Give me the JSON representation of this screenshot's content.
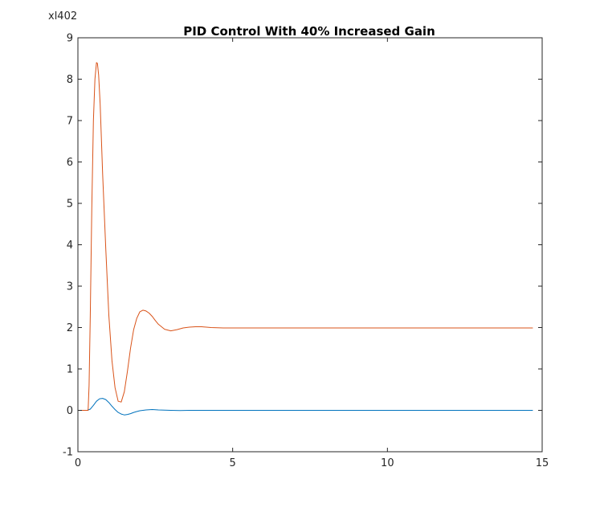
{
  "chart_data": {
    "type": "line",
    "title": "PID Control With 40% Increased Gain",
    "corner_label": "xl402",
    "xlim": [
      0,
      15
    ],
    "ylim": [
      -1,
      9
    ],
    "xticks": [
      0,
      5,
      10,
      15
    ],
    "yticks": [
      -1,
      0,
      1,
      2,
      3,
      4,
      5,
      6,
      7,
      8,
      9
    ],
    "grid": false,
    "legend": "none",
    "series": [
      {
        "color": "#0072BD",
        "x": [
          0,
          0.3,
          0.4,
          0.5,
          0.6,
          0.7,
          0.8,
          0.9,
          1.0,
          1.1,
          1.2,
          1.3,
          1.4,
          1.5,
          1.6,
          1.7,
          1.8,
          1.9,
          2.0,
          2.2,
          2.4,
          2.6,
          2.8,
          3.0,
          3.3,
          3.6,
          4.0,
          5.0,
          6.0,
          8.0,
          10.0,
          12.0,
          14.7
        ],
        "y": [
          0,
          0,
          0.03,
          0.12,
          0.22,
          0.28,
          0.29,
          0.26,
          0.19,
          0.1,
          0.02,
          -0.05,
          -0.09,
          -0.11,
          -0.1,
          -0.08,
          -0.05,
          -0.03,
          -0.01,
          0.01,
          0.02,
          0.01,
          0.005,
          0,
          -0.005,
          0,
          0,
          0,
          0,
          0,
          0,
          0,
          0
        ]
      },
      {
        "color": "#D95319",
        "x": [
          0,
          0.33,
          0.36,
          0.4,
          0.45,
          0.5,
          0.55,
          0.6,
          0.63,
          0.67,
          0.72,
          0.8,
          0.9,
          1.0,
          1.1,
          1.2,
          1.3,
          1.4,
          1.5,
          1.6,
          1.7,
          1.8,
          1.9,
          2.0,
          2.1,
          2.2,
          2.3,
          2.4,
          2.5,
          2.6,
          2.8,
          3.0,
          3.2,
          3.4,
          3.6,
          3.8,
          4.0,
          4.3,
          4.7,
          5.0,
          5.5,
          6.0,
          8.0,
          10.0,
          12.0,
          14.7
        ],
        "y": [
          0,
          0,
          0.6,
          2.3,
          4.9,
          7.0,
          8.0,
          8.4,
          8.38,
          8.1,
          7.4,
          5.7,
          3.9,
          2.3,
          1.2,
          0.55,
          0.22,
          0.2,
          0.45,
          0.95,
          1.5,
          1.95,
          2.22,
          2.38,
          2.42,
          2.4,
          2.35,
          2.27,
          2.17,
          2.08,
          1.96,
          1.92,
          1.95,
          1.99,
          2.01,
          2.02,
          2.02,
          2.0,
          1.99,
          1.99,
          1.99,
          1.99,
          1.99,
          1.99,
          1.99,
          1.99
        ]
      }
    ]
  }
}
